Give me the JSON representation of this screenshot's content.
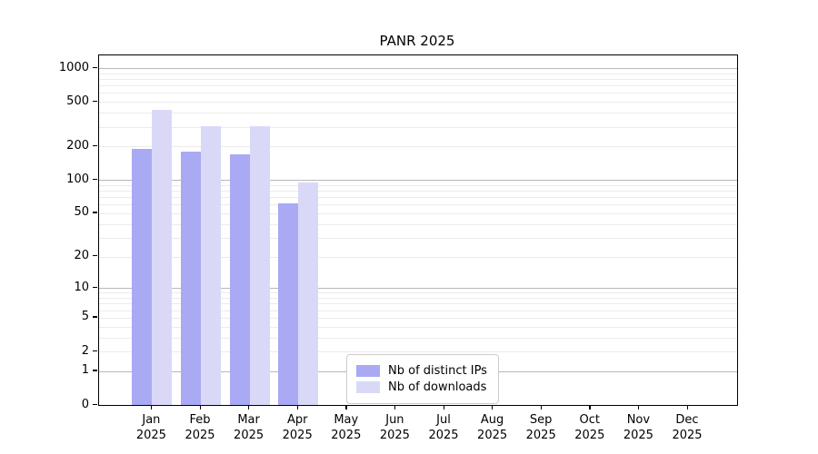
{
  "chart_data": {
    "type": "bar",
    "title": "PANR 2025",
    "y_scale": "symlog-ln(1+v)",
    "y_ticks": [
      0,
      1,
      2,
      5,
      10,
      20,
      50,
      100,
      200,
      500,
      1000
    ],
    "y_max": 1000,
    "grid": true,
    "categories": [
      "Jan",
      "Feb",
      "Mar",
      "Apr",
      "May",
      "Jun",
      "Jul",
      "Aug",
      "Sep",
      "Oct",
      "Nov",
      "Dec"
    ],
    "year_label": "2025",
    "series": [
      {
        "name": "Nb of distinct IPs",
        "color": "#a9a9f4",
        "values": [
          190,
          180,
          170,
          62,
          0,
          0,
          0,
          0,
          0,
          0,
          0,
          0
        ]
      },
      {
        "name": "Nb of downloads",
        "color": "#d9d9f7",
        "values": [
          425,
          305,
          305,
          95,
          0,
          0,
          0,
          0,
          0,
          0,
          0,
          0
        ]
      }
    ],
    "legend_position": "lower-center-left",
    "colors": {
      "major_grid": "#b8b8b8",
      "minor_grid": "#ebebeb",
      "axis": "#000000",
      "text": "#000000"
    }
  }
}
